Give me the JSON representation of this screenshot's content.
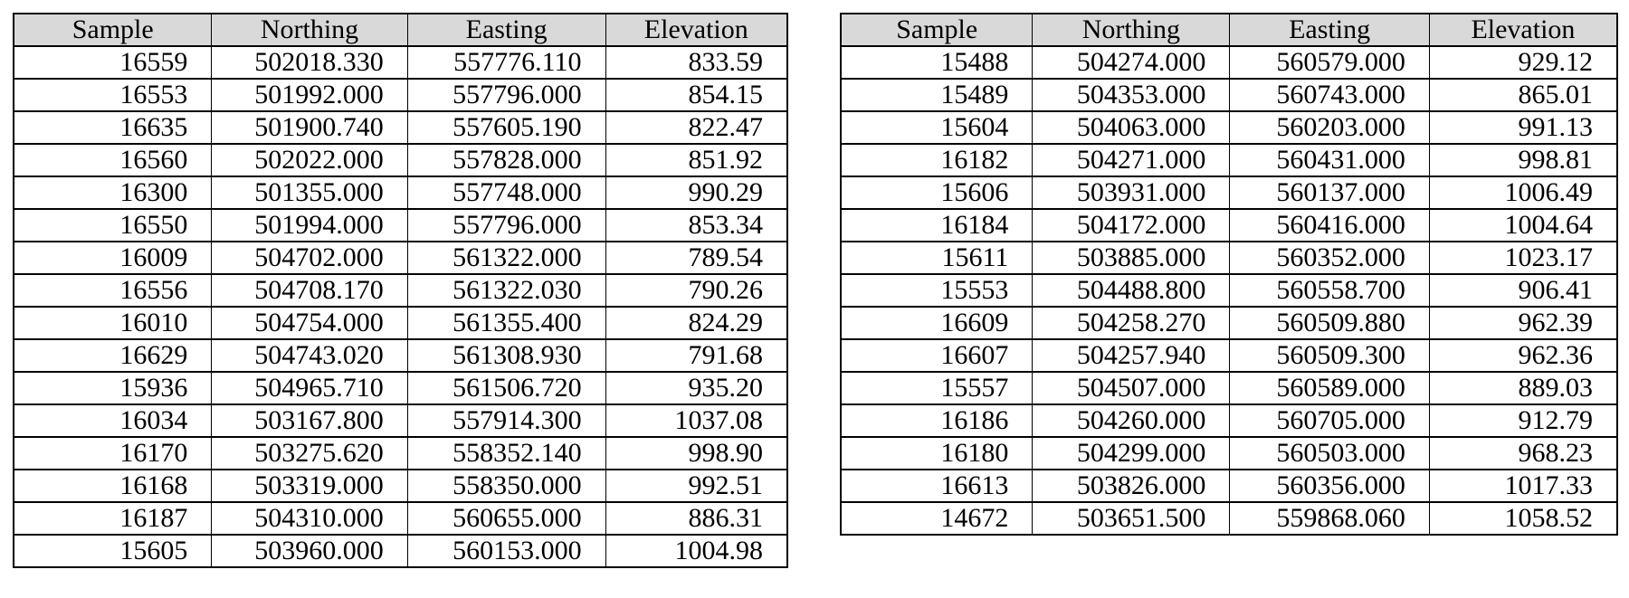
{
  "style": {
    "header_bg": "#d9d9d9",
    "border_color": "#000000",
    "text_color": "#000000",
    "page_background": "#ffffff"
  },
  "tables": [
    {
      "id": "sample-table-left",
      "columns": [
        "Sample",
        "Northing",
        "Easting",
        "Elevation"
      ],
      "rows": [
        [
          "16559",
          "502018.330",
          "557776.110",
          "833.59"
        ],
        [
          "16553",
          "501992.000",
          "557796.000",
          "854.15"
        ],
        [
          "16635",
          "501900.740",
          "557605.190",
          "822.47"
        ],
        [
          "16560",
          "502022.000",
          "557828.000",
          "851.92"
        ],
        [
          "16300",
          "501355.000",
          "557748.000",
          "990.29"
        ],
        [
          "16550",
          "501994.000",
          "557796.000",
          "853.34"
        ],
        [
          "16009",
          "504702.000",
          "561322.000",
          "789.54"
        ],
        [
          "16556",
          "504708.170",
          "561322.030",
          "790.26"
        ],
        [
          "16010",
          "504754.000",
          "561355.400",
          "824.29"
        ],
        [
          "16629",
          "504743.020",
          "561308.930",
          "791.68"
        ],
        [
          "15936",
          "504965.710",
          "561506.720",
          "935.20"
        ],
        [
          "16034",
          "503167.800",
          "557914.300",
          "1037.08"
        ],
        [
          "16170",
          "503275.620",
          "558352.140",
          "998.90"
        ],
        [
          "16168",
          "503319.000",
          "558350.000",
          "992.51"
        ],
        [
          "16187",
          "504310.000",
          "560655.000",
          "886.31"
        ],
        [
          "15605",
          "503960.000",
          "560153.000",
          "1004.98"
        ]
      ]
    },
    {
      "id": "sample-table-right",
      "columns": [
        "Sample",
        "Northing",
        "Easting",
        "Elevation"
      ],
      "rows": [
        [
          "15488",
          "504274.000",
          "560579.000",
          "929.12"
        ],
        [
          "15489",
          "504353.000",
          "560743.000",
          "865.01"
        ],
        [
          "15604",
          "504063.000",
          "560203.000",
          "991.13"
        ],
        [
          "16182",
          "504271.000",
          "560431.000",
          "998.81"
        ],
        [
          "15606",
          "503931.000",
          "560137.000",
          "1006.49"
        ],
        [
          "16184",
          "504172.000",
          "560416.000",
          "1004.64"
        ],
        [
          "15611",
          "503885.000",
          "560352.000",
          "1023.17"
        ],
        [
          "15553",
          "504488.800",
          "560558.700",
          "906.41"
        ],
        [
          "16609",
          "504258.270",
          "560509.880",
          "962.39"
        ],
        [
          "16607",
          "504257.940",
          "560509.300",
          "962.36"
        ],
        [
          "15557",
          "504507.000",
          "560589.000",
          "889.03"
        ],
        [
          "16186",
          "504260.000",
          "560705.000",
          "912.79"
        ],
        [
          "16180",
          "504299.000",
          "560503.000",
          "968.23"
        ],
        [
          "16613",
          "503826.000",
          "560356.000",
          "1017.33"
        ],
        [
          "14672",
          "503651.500",
          "559868.060",
          "1058.52"
        ]
      ]
    }
  ]
}
